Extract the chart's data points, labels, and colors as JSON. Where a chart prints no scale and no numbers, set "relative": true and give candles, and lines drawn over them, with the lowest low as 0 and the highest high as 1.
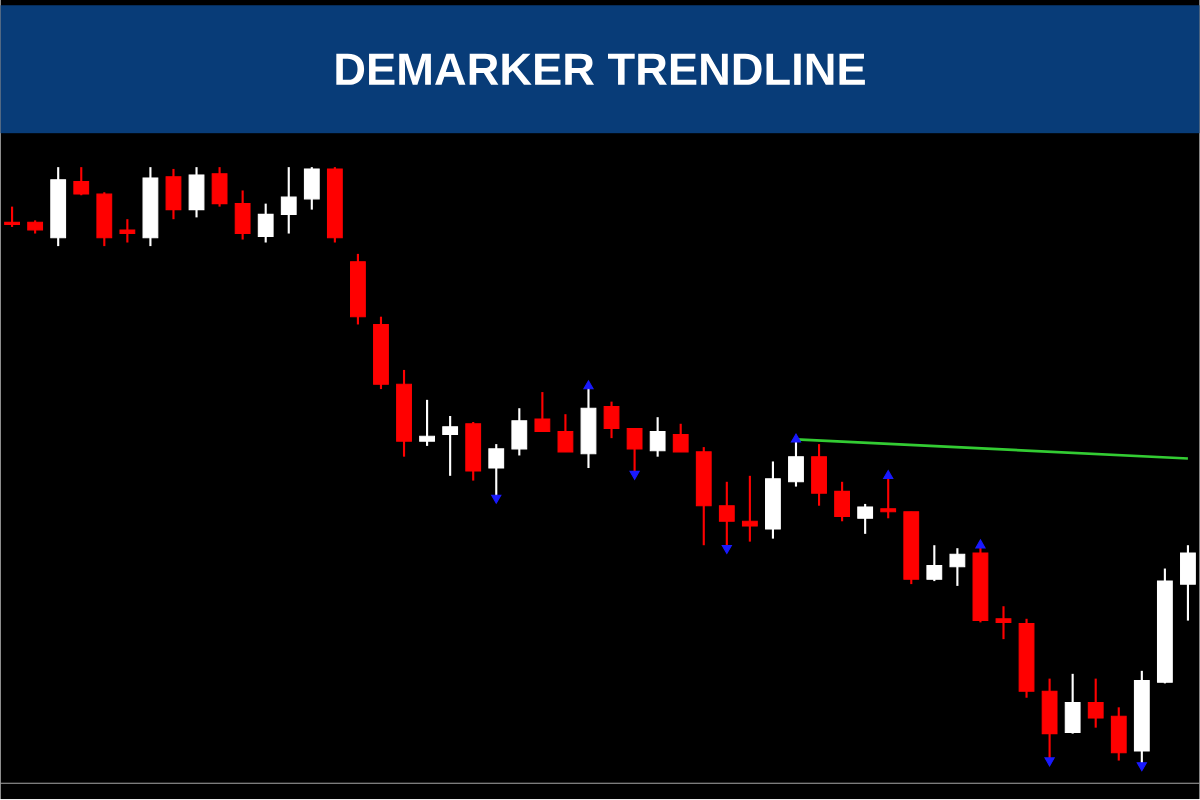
{
  "chart_data": {
    "type": "candlestick",
    "title": "DEMARKER TRENDLINE",
    "relative": true,
    "categories": [
      null,
      null,
      null,
      null,
      null,
      null,
      null,
      null,
      null,
      null,
      null,
      null,
      null,
      null,
      null,
      null,
      null,
      null,
      null,
      null,
      null,
      null,
      null,
      null,
      null,
      null,
      null,
      null,
      null,
      null,
      null,
      null,
      null,
      null,
      null,
      null,
      null,
      null,
      null,
      null,
      null,
      null,
      null,
      null,
      null,
      null,
      null,
      null,
      null,
      null,
      null,
      null
    ],
    "ohlc": [
      [
        0.908,
        0.934,
        0.9,
        0.905
      ],
      [
        0.908,
        0.911,
        0.889,
        0.895
      ],
      [
        0.882,
        1,
        0.868,
        0.979
      ],
      [
        0.976,
        1,
        0.953,
        0.955
      ],
      [
        0.955,
        0.958,
        0.868,
        0.882
      ],
      [
        0.895,
        0.913,
        0.874,
        0.889
      ],
      [
        0.882,
        1,
        0.868,
        0.982
      ],
      [
        0.984,
        0.997,
        0.913,
        0.929
      ],
      [
        0.929,
        1,
        0.916,
        0.987
      ],
      [
        0.989,
        1,
        0.934,
        0.939
      ],
      [
        0.939,
        0.961,
        0.879,
        0.889
      ],
      [
        0.884,
        0.939,
        0.874,
        0.921
      ],
      [
        0.921,
        1,
        0.889,
        0.95
      ],
      [
        0.947,
        1,
        0.929,
        0.997
      ],
      [
        0.997,
        1,
        0.874,
        0.882
      ],
      [
        0.842,
        0.855,
        0.737,
        0.75
      ],
      [
        0.737,
        0.75,
        0.629,
        0.637
      ],
      [
        0.637,
        0.661,
        0.516,
        0.542
      ],
      [
        0.542,
        0.611,
        0.534,
        0.55
      ],
      [
        0.553,
        0.584,
        0.484,
        0.566
      ],
      [
        0.571,
        0.574,
        0.476,
        0.492
      ],
      [
        0.497,
        0.537,
        0.447,
        0.529
      ],
      [
        0.529,
        0.597,
        0.518,
        0.576
      ],
      [
        0.579,
        0.624,
        0.558,
        0.558
      ],
      [
        0.558,
        0.587,
        0.524,
        0.524
      ],
      [
        0.521,
        0.634,
        0.497,
        0.597
      ],
      [
        0.6,
        0.608,
        0.547,
        0.563
      ],
      [
        0.563,
        0.563,
        0.487,
        0.529
      ],
      [
        0.526,
        0.582,
        0.516,
        0.558
      ],
      [
        0.553,
        0.571,
        0.524,
        0.524
      ],
      [
        0.524,
        0.532,
        0.368,
        0.434
      ],
      [
        0.434,
        0.474,
        0.363,
        0.408
      ],
      [
        0.408,
        0.484,
        0.374,
        0.4
      ],
      [
        0.395,
        0.508,
        0.379,
        0.479
      ],
      [
        0.474,
        0.545,
        0.466,
        0.516
      ],
      [
        0.516,
        0.537,
        0.434,
        0.455
      ],
      [
        0.458,
        0.474,
        0.408,
        0.416
      ],
      [
        0.413,
        0.437,
        0.387,
        0.432
      ],
      [
        0.429,
        0.484,
        0.413,
        0.424
      ],
      [
        0.424,
        0.424,
        0.303,
        0.311
      ],
      [
        0.311,
        0.368,
        0.308,
        0.334
      ],
      [
        0.332,
        0.363,
        0.3,
        0.353
      ],
      [
        0.355,
        0.368,
        0.239,
        0.242
      ],
      [
        0.245,
        0.266,
        0.211,
        0.239
      ],
      [
        0.237,
        0.245,
        0.113,
        0.124
      ],
      [
        0.124,
        0.145,
        0.008,
        0.053
      ],
      [
        0.055,
        0.153,
        0.053,
        0.105
      ],
      [
        0.105,
        0.145,
        0.063,
        0.079
      ],
      [
        0.082,
        0.097,
        0.008,
        0.021
      ],
      [
        0.024,
        0.158,
        0,
        0.142
      ],
      [
        0.139,
        0.329,
        0.137,
        0.308
      ],
      [
        0.303,
        0.368,
        0.242,
        0.355
      ]
    ],
    "colors": [
      "#ff0000",
      "#ff0000",
      "#ffffff",
      "#ff0000",
      "#ff0000",
      "#ff0000",
      "#ffffff",
      "#ff0000",
      "#ffffff",
      "#ff0000",
      "#ff0000",
      "#ffffff",
      "#ffffff",
      "#ffffff",
      "#ff0000",
      "#ff0000",
      "#ff0000",
      "#ff0000",
      "#ffffff",
      "#ffffff",
      "#ff0000",
      "#ffffff",
      "#ffffff",
      "#ff0000",
      "#ff0000",
      "#ffffff",
      "#ff0000",
      "#ff0000",
      "#ffffff",
      "#ff0000",
      "#ff0000",
      "#ff0000",
      "#ff0000",
      "#ffffff",
      "#ffffff",
      "#ff0000",
      "#ff0000",
      "#ffffff",
      "#ff0000",
      "#ff0000",
      "#ffffff",
      "#ffffff",
      "#ff0000",
      "#ff0000",
      "#ff0000",
      "#ff0000",
      "#ffffff",
      "#ff0000",
      "#ff0000",
      "#ffffff",
      "#ffffff",
      "#ffffff"
    ],
    "series": [
      {
        "type": "line",
        "color": "#33cc33",
        "values": [
          null,
          null,
          null,
          null,
          null,
          null,
          null,
          null,
          null,
          null,
          null,
          null,
          null,
          null,
          null,
          null,
          null,
          null,
          null,
          null,
          null,
          null,
          null,
          null,
          null,
          null,
          null,
          null,
          null,
          null,
          null,
          null,
          null,
          null,
          0.545,
          null,
          null,
          null,
          null,
          null,
          null,
          null,
          null,
          null,
          null,
          null,
          null,
          null,
          null,
          null,
          null,
          0.513
        ]
      },
      {
        "type": "scatter",
        "color": "#1a1aff",
        "marker": "triangle",
        "values": [
          null,
          null,
          null,
          null,
          null,
          null,
          null,
          null,
          null,
          null,
          null,
          null,
          null,
          null,
          null,
          null,
          null,
          null,
          null,
          null,
          null,
          0.447,
          null,
          null,
          null,
          0.634,
          null,
          0.487,
          null,
          null,
          null,
          0.363,
          null,
          null,
          0.545,
          null,
          null,
          null,
          0.484,
          null,
          null,
          null,
          0.368,
          null,
          null,
          0.008,
          null,
          null,
          null,
          0,
          null,
          null
        ]
      }
    ]
  }
}
